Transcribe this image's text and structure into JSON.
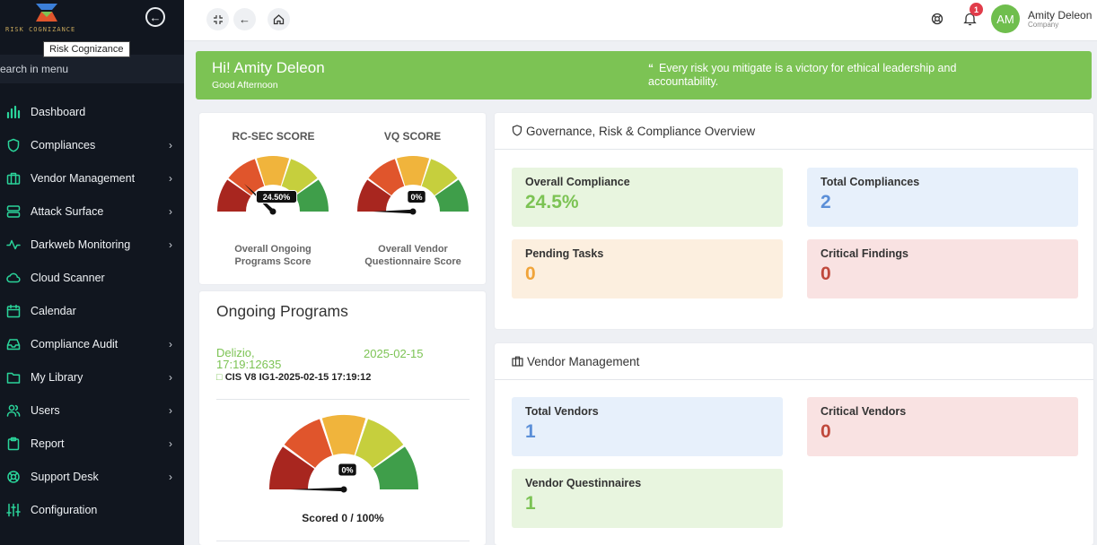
{
  "brand": {
    "tooltip": "Risk Cognizance",
    "logo_text": "RISK COGNIZANCE"
  },
  "sidebar": {
    "search_placeholder": "earch in menu",
    "items": [
      {
        "label": "Dashboard",
        "icon": "bar-chart-icon",
        "chevron": false
      },
      {
        "label": "Compliances",
        "icon": "shield-icon",
        "chevron": true
      },
      {
        "label": "Vendor Management",
        "icon": "briefcase-icon",
        "chevron": true
      },
      {
        "label": "Attack Surface",
        "icon": "server-icon",
        "chevron": true
      },
      {
        "label": "Darkweb Monitoring",
        "icon": "activity-icon",
        "chevron": true
      },
      {
        "label": "Cloud Scanner",
        "icon": "cloud-icon",
        "chevron": false
      },
      {
        "label": "Calendar",
        "icon": "calendar-icon",
        "chevron": false
      },
      {
        "label": "Compliance Audit",
        "icon": "inbox-icon",
        "chevron": true
      },
      {
        "label": "My Library",
        "icon": "folder-icon",
        "chevron": true
      },
      {
        "label": "Users",
        "icon": "users-icon",
        "chevron": true
      },
      {
        "label": "Report",
        "icon": "clipboard-icon",
        "chevron": true
      },
      {
        "label": "Support Desk",
        "icon": "lifebuoy-icon",
        "chevron": true
      },
      {
        "label": "Configuration",
        "icon": "sliders-icon",
        "chevron": false
      }
    ]
  },
  "topbar": {
    "notification_count": "1",
    "avatar_initials": "AM",
    "user_name": "Amity Deleon",
    "user_role": "Company"
  },
  "banner": {
    "greeting": "Hi! Amity Deleon",
    "subgreeting": "Good Afternoon",
    "quote": "Every risk you mitigate is a victory for ethical leadership and accountability."
  },
  "scores": {
    "rcsec": {
      "title": "RC-SEC SCORE",
      "value": 24.5,
      "value_label": "24.50%",
      "caption": "Overall Ongoing Programs Score"
    },
    "vq": {
      "title": "VQ SCORE",
      "value": 0,
      "value_label": "0%",
      "caption": "Overall Vendor Questionnaire Score"
    }
  },
  "ongoing": {
    "title": "Ongoing Programs",
    "program_name": "Delizio,",
    "program_date": "2025-02-15",
    "program_time": "17:19:12635",
    "program_sub": "CIS V8 IG1-2025-02-15 17:19:12",
    "gauge_value": 0,
    "gauge_label": "0%",
    "scored": "Scored 0 / 100%"
  },
  "grc": {
    "title": "Governance, Risk & Compliance Overview",
    "stats": [
      {
        "label": "Overall Compliance",
        "value": "24.5%"
      },
      {
        "label": "Total Compliances",
        "value": "2"
      },
      {
        "label": "Pending Tasks",
        "value": "0"
      },
      {
        "label": "Critical Findings",
        "value": "0"
      }
    ]
  },
  "vendor": {
    "title": "Vendor Management",
    "stats": [
      {
        "label": "Total Vendors",
        "value": "1"
      },
      {
        "label": "Critical Vendors",
        "value": "0"
      },
      {
        "label": "Vendor Questinnaires",
        "value": "1"
      }
    ]
  },
  "colors": {
    "accent_green": "#7cc354",
    "sidebar_bg": "#11161f",
    "icon_teal": "#2ad49a",
    "gauge": [
      "#a8261f",
      "#e0552c",
      "#f0b43c",
      "#c6cf3d",
      "#3f9e4a"
    ]
  }
}
